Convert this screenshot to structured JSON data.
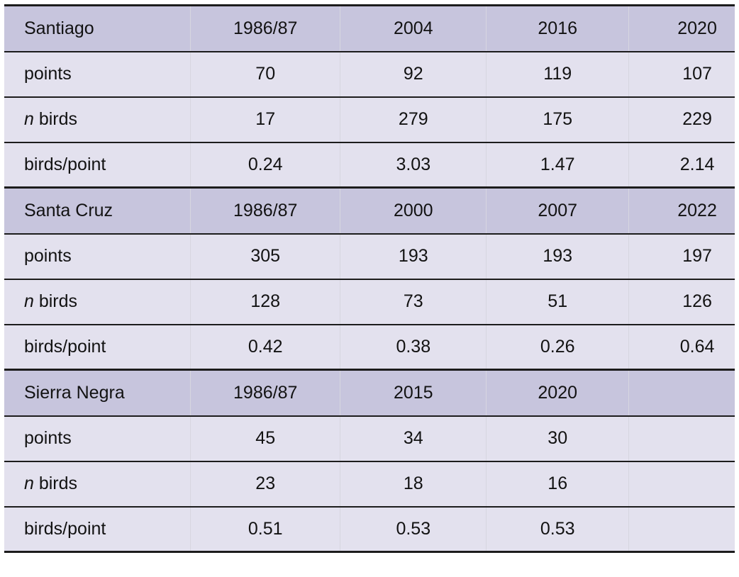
{
  "style": {
    "header_bg": "#c7c5dd",
    "body_bg": "#e3e1ee",
    "border_color": "#1c1c1c",
    "column_line": "rgba(110, 108, 145, 0.28)",
    "text_color": "#121212",
    "page_bg": "#ffffff"
  },
  "chart_data": {
    "type": "table",
    "metrics": [
      "points",
      "n birds",
      "birds/point"
    ],
    "sections": [
      {
        "name": "Santiago",
        "columns": [
          "1986/87",
          "2004",
          "2016",
          "2020"
        ],
        "rows": [
          {
            "metric": "points",
            "label": {
              "italic": "",
              "text": "points"
            },
            "values": [
              "70",
              "92",
              "119",
              "107"
            ]
          },
          {
            "metric": "n birds",
            "label": {
              "italic": "n",
              "text": " birds"
            },
            "values": [
              "17",
              "279",
              "175",
              "229"
            ]
          },
          {
            "metric": "birds/point",
            "label": {
              "italic": "",
              "text": "birds/point"
            },
            "values": [
              "0.24",
              "3.03",
              "1.47",
              "2.14"
            ]
          }
        ]
      },
      {
        "name": "Santa Cruz",
        "columns": [
          "1986/87",
          "2000",
          "2007",
          "2022"
        ],
        "rows": [
          {
            "metric": "points",
            "label": {
              "italic": "",
              "text": "points"
            },
            "values": [
              "305",
              "193",
              "193",
              "197"
            ]
          },
          {
            "metric": "n birds",
            "label": {
              "italic": "n",
              "text": " birds"
            },
            "values": [
              "128",
              "73",
              "51",
              "126"
            ]
          },
          {
            "metric": "birds/point",
            "label": {
              "italic": "",
              "text": "birds/point"
            },
            "values": [
              "0.42",
              "0.38",
              "0.26",
              "0.64"
            ]
          }
        ]
      },
      {
        "name": "Sierra Negra",
        "columns": [
          "1986/87",
          "2015",
          "2020",
          ""
        ],
        "rows": [
          {
            "metric": "points",
            "label": {
              "italic": "",
              "text": "points"
            },
            "values": [
              "45",
              "34",
              "30",
              ""
            ]
          },
          {
            "metric": "n birds",
            "label": {
              "italic": "n",
              "text": " birds"
            },
            "values": [
              "23",
              "18",
              "16",
              ""
            ]
          },
          {
            "metric": "birds/point",
            "label": {
              "italic": "",
              "text": "birds/point"
            },
            "values": [
              "0.51",
              "0.53",
              "0.53",
              ""
            ]
          }
        ]
      }
    ]
  }
}
